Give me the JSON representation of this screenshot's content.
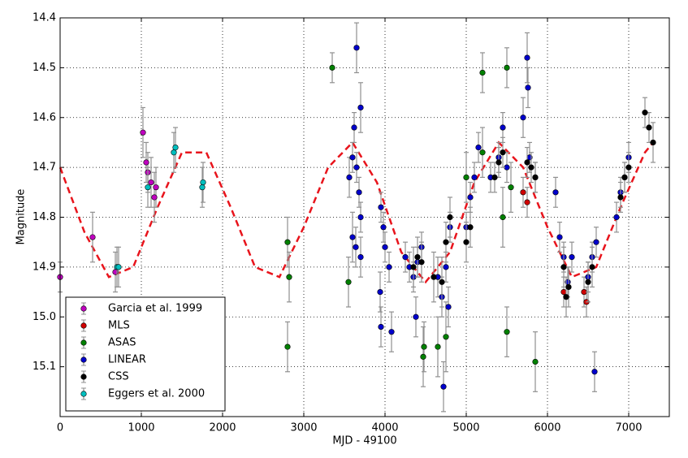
{
  "chart_data": {
    "type": "scatter",
    "x_label": "MJD - 49100",
    "y_label": "Magnitude",
    "xlim": [
      0,
      7500
    ],
    "ylim": [
      14.4,
      15.2
    ],
    "invert_y": true,
    "xticks": [
      0,
      1000,
      2000,
      3000,
      4000,
      5000,
      6000,
      7000
    ],
    "yticks": [
      14.4,
      14.5,
      14.6,
      14.7,
      14.8,
      14.9,
      {
        "value": 15,
        "label": "15.0"
      },
      15.1
    ],
    "grid": true,
    "legend_loc": "lower left",
    "error_color": "#909090",
    "series": [
      {
        "name": "Garcia et al. 1999",
        "color": "#bf00bf",
        "x": [
          0,
          400,
          680,
          1020,
          1060,
          1080,
          1120,
          1160,
          1180
        ],
        "values": [
          14.92,
          14.84,
          14.91,
          14.63,
          14.69,
          14.71,
          14.73,
          14.76,
          14.74
        ],
        "errors": [
          0.03,
          0.05,
          0.04,
          0.05,
          0.04,
          0.04,
          0.05,
          0.05,
          0.04
        ]
      },
      {
        "name": "MLS",
        "color": "#d00000",
        "x": [
          5700,
          5750,
          6200,
          6450,
          6480
        ],
        "values": [
          14.75,
          14.77,
          14.95,
          14.95,
          14.97
        ],
        "errors": [
          0.03,
          0.03,
          0.03,
          0.03,
          0.03
        ]
      },
      {
        "name": "ASAS",
        "color": "#008000",
        "x": [
          2800,
          2820,
          2800,
          3350,
          3550,
          4470,
          4480,
          4650,
          4750,
          5000,
          5200,
          5200,
          5450,
          5500,
          5500,
          5550,
          5850
        ],
        "values": [
          14.85,
          14.92,
          15.06,
          14.5,
          14.93,
          15.08,
          15.06,
          15.06,
          15.04,
          14.72,
          14.51,
          14.67,
          14.8,
          14.5,
          15.03,
          14.74,
          15.09
        ],
        "errors": [
          0.05,
          0.05,
          0.05,
          0.03,
          0.05,
          0.06,
          0.05,
          0.06,
          0.07,
          0.05,
          0.04,
          0.05,
          0.06,
          0.04,
          0.05,
          0.05,
          0.06
        ]
      },
      {
        "name": "LINEAR",
        "color": "#0000cc",
        "x": [
          3560,
          3600,
          3600,
          3620,
          3640,
          3650,
          3650,
          3680,
          3700,
          3700,
          3700,
          3940,
          3950,
          3950,
          3980,
          4000,
          4050,
          4080,
          4250,
          4300,
          4350,
          4380,
          4400,
          4450,
          4650,
          4700,
          4720,
          4750,
          4780,
          4800,
          5000,
          5050,
          5100,
          5150,
          5300,
          5400,
          5450,
          5500,
          5700,
          5750,
          5760,
          5780,
          5850,
          6100,
          6150,
          6200,
          6250,
          6300,
          6500,
          6550,
          6580,
          6600,
          6850,
          6900,
          6950,
          7000
        ],
        "values": [
          14.72,
          14.68,
          14.84,
          14.62,
          14.86,
          14.7,
          14.46,
          14.75,
          14.8,
          14.88,
          14.58,
          14.95,
          14.78,
          15.02,
          14.82,
          14.86,
          14.9,
          15.03,
          14.88,
          14.9,
          14.92,
          15.0,
          14.89,
          14.86,
          14.92,
          14.96,
          15.14,
          14.9,
          14.98,
          14.82,
          14.82,
          14.76,
          14.72,
          14.66,
          14.72,
          14.68,
          14.62,
          14.7,
          14.6,
          14.48,
          14.54,
          14.68,
          14.72,
          14.75,
          14.84,
          14.88,
          14.93,
          14.88,
          14.92,
          14.88,
          15.11,
          14.85,
          14.8,
          14.75,
          14.72,
          14.68
        ],
        "errors": [
          0.04,
          0.03,
          0.05,
          0.03,
          0.04,
          0.03,
          0.05,
          0.03,
          0.03,
          0.04,
          0.05,
          0.04,
          0.03,
          0.04,
          0.03,
          0.03,
          0.03,
          0.04,
          0.03,
          0.03,
          0.03,
          0.04,
          0.03,
          0.03,
          0.04,
          0.04,
          0.05,
          0.03,
          0.04,
          0.03,
          0.03,
          0.03,
          0.03,
          0.03,
          0.03,
          0.03,
          0.03,
          0.03,
          0.04,
          0.05,
          0.04,
          0.03,
          0.03,
          0.03,
          0.03,
          0.03,
          0.03,
          0.03,
          0.03,
          0.03,
          0.04,
          0.03,
          0.03,
          0.03,
          0.03,
          0.03
        ]
      },
      {
        "name": "CSS",
        "color": "#000000",
        "x": [
          4350,
          4400,
          4450,
          4600,
          4700,
          4750,
          4800,
          5000,
          5050,
          5350,
          5400,
          5450,
          5750,
          5800,
          5850,
          6200,
          6230,
          6260,
          6500,
          6550,
          6900,
          6950,
          7000,
          7200,
          7250,
          7300
        ],
        "values": [
          14.9,
          14.88,
          14.89,
          14.92,
          14.93,
          14.85,
          14.8,
          14.85,
          14.82,
          14.72,
          14.69,
          14.67,
          14.69,
          14.7,
          14.72,
          14.9,
          14.96,
          14.94,
          14.93,
          14.9,
          14.76,
          14.72,
          14.7,
          14.59,
          14.62,
          14.65
        ],
        "errors": [
          0.04,
          0.04,
          0.04,
          0.05,
          0.05,
          0.04,
          0.04,
          0.04,
          0.04,
          0.03,
          0.03,
          0.03,
          0.03,
          0.03,
          0.03,
          0.04,
          0.04,
          0.04,
          0.04,
          0.04,
          0.03,
          0.03,
          0.03,
          0.03,
          0.03,
          0.04
        ]
      },
      {
        "name": "Eggers et al. 2000",
        "color": "#00bfbf",
        "x": [
          700,
          720,
          1080,
          1400,
          1420,
          1750,
          1760
        ],
        "values": [
          14.9,
          14.9,
          14.74,
          14.67,
          14.66,
          14.74,
          14.73
        ],
        "errors": [
          0.04,
          0.04,
          0.04,
          0.04,
          0.04,
          0.04,
          0.04
        ]
      }
    ],
    "model": {
      "color": "#e8141c",
      "linestyle": "dashed",
      "x": [
        0,
        300,
        600,
        900,
        1200,
        1500,
        1800,
        2100,
        2400,
        2700,
        3000,
        3300,
        3600,
        3900,
        4200,
        4500,
        4800,
        5100,
        5400,
        5700,
        6000,
        6300,
        6600,
        6900,
        7200,
        7300
      ],
      "values": [
        14.7,
        14.83,
        14.92,
        14.9,
        14.78,
        14.67,
        14.67,
        14.78,
        14.9,
        14.92,
        14.82,
        14.7,
        14.65,
        14.73,
        14.87,
        14.93,
        14.87,
        14.73,
        14.65,
        14.7,
        14.82,
        14.92,
        14.9,
        14.78,
        14.67,
        14.65
      ]
    }
  }
}
